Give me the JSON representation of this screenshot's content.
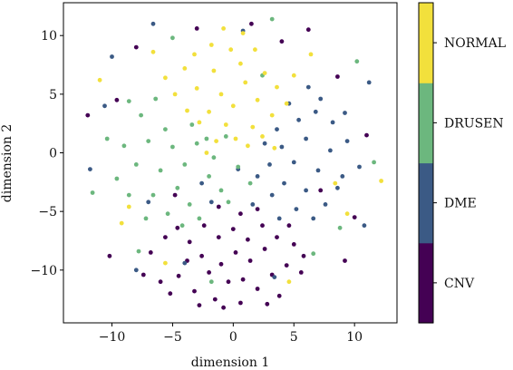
{
  "chart_data": {
    "type": "scatter",
    "xlabel": "dimension 1",
    "ylabel": "dimension 2",
    "xlim": [
      -14.0,
      13.5
    ],
    "ylim": [
      -14.5,
      12.8
    ],
    "xticks": [
      -10,
      -5,
      0,
      5,
      10
    ],
    "yticks": [
      -10,
      -5,
      0,
      5,
      10
    ],
    "xtick_labels": [
      "−10",
      "−5",
      "0",
      "5",
      "10"
    ],
    "ytick_labels": [
      "−10",
      "−5",
      "0",
      "5",
      "10"
    ],
    "grid": false,
    "colorbar": {
      "labels": [
        "CNV",
        "DME",
        "DRUSEN",
        "NORMAL"
      ],
      "colors": [
        "#440154",
        "#3b5a85",
        "#6cb77e",
        "#f2e03c"
      ]
    },
    "series": [
      {
        "name": "CNV",
        "color": "#440154",
        "points": [
          [
            -6,
            -11
          ],
          [
            -5.2,
            -12
          ],
          [
            -4.5,
            -10.5
          ],
          [
            -3.8,
            -9.2
          ],
          [
            -3.2,
            -11.8
          ],
          [
            -2.6,
            -8.8
          ],
          [
            -2,
            -10.2
          ],
          [
            -1.5,
            -12.5
          ],
          [
            -1,
            -9.5
          ],
          [
            -0.4,
            -11
          ],
          [
            0.2,
            -8.5
          ],
          [
            0.8,
            -10.8
          ],
          [
            1.4,
            -9.2
          ],
          [
            2,
            -11.6
          ],
          [
            2.6,
            -8.2
          ],
          [
            3.2,
            -10.4
          ],
          [
            3.8,
            -12.2
          ],
          [
            4.4,
            -9.6
          ],
          [
            5,
            -7.8
          ],
          [
            5.6,
            -10.2
          ],
          [
            -6.8,
            -8.5
          ],
          [
            -5.6,
            -7.2
          ],
          [
            -4.6,
            -6.4
          ],
          [
            -3.6,
            -7.6
          ],
          [
            -2.4,
            -6.2
          ],
          [
            -1.2,
            -7.2
          ],
          [
            0,
            -6.5
          ],
          [
            1.2,
            -7.4
          ],
          [
            2.4,
            -6.2
          ],
          [
            3.6,
            -7.2
          ],
          [
            4.6,
            -6.2
          ],
          [
            5.8,
            -8.8
          ],
          [
            -0.8,
            -13.2
          ],
          [
            0.6,
            -12.8
          ],
          [
            -2.8,
            -13
          ],
          [
            2.8,
            -12.9
          ],
          [
            1.5,
            11
          ],
          [
            4,
            9.5
          ],
          [
            -8,
            9
          ],
          [
            8.6,
            6.5
          ],
          [
            -10.2,
            -8.8
          ],
          [
            10,
            -5.5
          ],
          [
            -9.6,
            4.5
          ],
          [
            7.2,
            -3.2
          ],
          [
            -12,
            3.2
          ],
          [
            11,
            1.5
          ],
          [
            -3,
            10.6
          ],
          [
            6.2,
            10.5
          ],
          [
            -1.2,
            -4.6
          ],
          [
            0.6,
            -5.2
          ],
          [
            2,
            -4.8
          ],
          [
            -4.8,
            -3.6
          ],
          [
            9.2,
            -9.2
          ],
          [
            -7.4,
            -10.4
          ]
        ]
      },
      {
        "name": "DME",
        "color": "#3b5a85",
        "points": [
          [
            3,
            -1
          ],
          [
            4,
            0.5
          ],
          [
            5,
            -0.8
          ],
          [
            6,
            1.2
          ],
          [
            7,
            -1.5
          ],
          [
            3.6,
            2
          ],
          [
            5.4,
            2.8
          ],
          [
            6.8,
            3.5
          ],
          [
            8,
            0.2
          ],
          [
            9,
            -2
          ],
          [
            4.2,
            -2.6
          ],
          [
            6,
            -3.2
          ],
          [
            7.6,
            -4.4
          ],
          [
            8.6,
            -3
          ],
          [
            2.6,
            0.8
          ],
          [
            2,
            -2
          ],
          [
            3.2,
            -3.6
          ],
          [
            5.2,
            -4.8
          ],
          [
            6.6,
            -5.6
          ],
          [
            8.2,
            2.6
          ],
          [
            9.4,
            1
          ],
          [
            10.4,
            -1.2
          ],
          [
            4.6,
            4.2
          ],
          [
            7.2,
            4.6
          ],
          [
            1.6,
            -4.4
          ],
          [
            3.8,
            -5.6
          ],
          [
            6.2,
            5.6
          ],
          [
            9.2,
            3.4
          ],
          [
            0.4,
            -1.4
          ],
          [
            -1.8,
            -4.2
          ],
          [
            -8,
            -10
          ],
          [
            -10.6,
            4
          ],
          [
            -11.8,
            -1.4
          ],
          [
            -10,
            8.2
          ],
          [
            11.2,
            6
          ],
          [
            -6.6,
            11
          ],
          [
            0.8,
            10.4
          ],
          [
            -4,
            -9.4
          ],
          [
            3.4,
            -10.6
          ],
          [
            -2.6,
            -2.6
          ],
          [
            10.8,
            -6.2
          ],
          [
            -7,
            -4.2
          ]
        ]
      },
      {
        "name": "DRUSEN",
        "color": "#6cb77e",
        "points": [
          [
            -4,
            -1
          ],
          [
            -5,
            0.5
          ],
          [
            -6,
            -1.5
          ],
          [
            -7,
            1
          ],
          [
            -3,
            0.8
          ],
          [
            -2,
            -2
          ],
          [
            -4.6,
            -3
          ],
          [
            -6.6,
            -3.6
          ],
          [
            -8,
            -1
          ],
          [
            -9,
            0.6
          ],
          [
            -3.4,
            2.4
          ],
          [
            -5.6,
            2
          ],
          [
            -7.6,
            3.2
          ],
          [
            -2.2,
            1.2
          ],
          [
            -1,
            -3.2
          ],
          [
            -3.6,
            -4.4
          ],
          [
            -5.4,
            -5.2
          ],
          [
            -7.2,
            -5.6
          ],
          [
            -8.6,
            -3.6
          ],
          [
            -9.6,
            -2.2
          ],
          [
            -1.6,
            -0.4
          ],
          [
            -0.6,
            1.4
          ],
          [
            0.4,
            -1.2
          ],
          [
            -2.8,
            -5.6
          ],
          [
            -4.2,
            -6.2
          ],
          [
            -10.4,
            1.2
          ],
          [
            -6.4,
            4.6
          ],
          [
            -8.6,
            4.4
          ],
          [
            1.4,
            -2.6
          ],
          [
            -0.4,
            -4.2
          ],
          [
            -11.6,
            -3.4
          ],
          [
            8.8,
            -6.4
          ],
          [
            10.2,
            7.8
          ],
          [
            -7.8,
            -8.4
          ],
          [
            3.2,
            11.4
          ],
          [
            -1.8,
            -11
          ],
          [
            6.6,
            -8.6
          ],
          [
            11.6,
            -0.8
          ],
          [
            -5,
            9.8
          ],
          [
            2.4,
            6.6
          ]
        ]
      },
      {
        "name": "NORMAL",
        "color": "#f2e03c",
        "points": [
          [
            0,
            4
          ],
          [
            -1,
            5
          ],
          [
            -2,
            3.5
          ],
          [
            1,
            6
          ],
          [
            2,
            4.5
          ],
          [
            -3,
            5.5
          ],
          [
            -1.6,
            7
          ],
          [
            0.6,
            7.6
          ],
          [
            2.6,
            6.8
          ],
          [
            -2.8,
            2.6
          ],
          [
            -0.6,
            2.4
          ],
          [
            1.6,
            2.2
          ],
          [
            3.2,
            3.2
          ],
          [
            -3.8,
            3.6
          ],
          [
            -0.2,
            8.8
          ],
          [
            1.8,
            8.8
          ],
          [
            -1.8,
            9.2
          ],
          [
            -4,
            7.2
          ],
          [
            3.6,
            5.6
          ],
          [
            4.4,
            4.2
          ],
          [
            -4.8,
            5
          ],
          [
            0.2,
            1.2
          ],
          [
            -1.4,
            1
          ],
          [
            1.2,
            0.6
          ],
          [
            2.4,
            1.4
          ],
          [
            -2.2,
            0
          ],
          [
            3.4,
            0.4
          ],
          [
            -3.2,
            8.4
          ],
          [
            0.8,
            10.2
          ],
          [
            -0.8,
            10.6
          ],
          [
            -5.6,
            6.4
          ],
          [
            5,
            6.6
          ],
          [
            -6.6,
            8.6
          ],
          [
            6.4,
            8.4
          ],
          [
            -9.2,
            -6
          ],
          [
            9.4,
            -5.2
          ],
          [
            -5.6,
            -9.4
          ],
          [
            4.6,
            -11
          ],
          [
            12.2,
            -2.4
          ],
          [
            -11,
            6.2
          ],
          [
            8.4,
            -2.6
          ],
          [
            -8.6,
            -4.6
          ]
        ]
      }
    ]
  }
}
